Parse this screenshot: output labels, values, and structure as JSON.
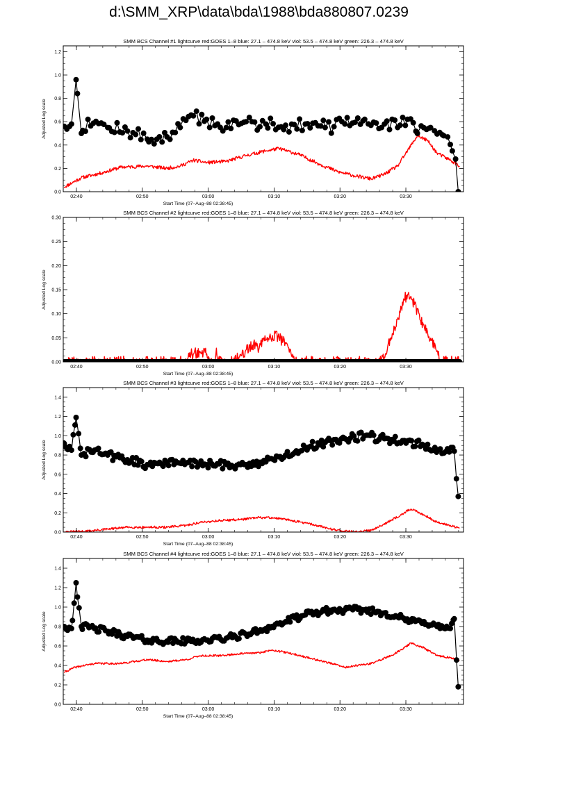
{
  "page": {
    "title": "d:\\SMM_XRP\\data\\bda\\1988\\bda880807.0239"
  },
  "colors": {
    "goes": "#ff0000",
    "bcs": "#000000"
  },
  "chart_data": [
    {
      "type": "line",
      "title": "SMM BCS Channel #1 lightcurve  red:GOES 1–8  blue: 27.1 – 474.8 keV  viol: 53.5 – 474.8 keV  green: 226.3 – 474.8 keV",
      "xlabel": "Start Time (07–Aug–88 02:38:45)",
      "ylabel": "Adjusted Log scale",
      "xlim": [
        -0.75,
        60.0
      ],
      "ylim": [
        0,
        1.25
      ],
      "x_ticks": [
        1.25,
        11.25,
        21.25,
        31.25,
        41.25,
        51.25
      ],
      "x_tick_labels": [
        "02:40",
        "02:50",
        "03:00",
        "03:10",
        "03:20",
        "03:30"
      ],
      "y_ticks": [
        0,
        0.2,
        0.4,
        0.6,
        0.8,
        1.0,
        1.2
      ],
      "y_tick_labels": [
        "0.0",
        "0.2",
        "0.4",
        "0.6",
        "0.8",
        "1.0",
        "1.2"
      ],
      "series": [
        {
          "name": "GOES 1–8",
          "color": "#ff0000",
          "seed": 11,
          "noise": 0.015,
          "keypoints": [
            [
              -0.6,
              0.04
            ],
            [
              2,
              0.12
            ],
            [
              5,
              0.16
            ],
            [
              8,
              0.21
            ],
            [
              12,
              0.22
            ],
            [
              15,
              0.2
            ],
            [
              17,
              0.22
            ],
            [
              19,
              0.27
            ],
            [
              21,
              0.25
            ],
            [
              24,
              0.26
            ],
            [
              27,
              0.31
            ],
            [
              30,
              0.35
            ],
            [
              32,
              0.37
            ],
            [
              35,
              0.32
            ],
            [
              38,
              0.24
            ],
            [
              41,
              0.17
            ],
            [
              44,
              0.13
            ],
            [
              46,
              0.11
            ],
            [
              48,
              0.15
            ],
            [
              50,
              0.22
            ],
            [
              51.5,
              0.35
            ],
            [
              53,
              0.48
            ],
            [
              54.5,
              0.44
            ],
            [
              56,
              0.33
            ],
            [
              58,
              0.27
            ],
            [
              59.4,
              0.22
            ]
          ]
        },
        {
          "name": "BCS Channel #1",
          "color": "#000000",
          "markers": true,
          "seed": 12,
          "noise": 0.06,
          "n": 150,
          "keypoints": [
            [
              -0.6,
              0.56
            ],
            [
              0.5,
              0.58
            ],
            [
              1.2,
              0.96
            ],
            [
              2,
              0.5
            ],
            [
              3,
              0.62
            ],
            [
              6,
              0.55
            ],
            [
              9,
              0.52
            ],
            [
              12,
              0.45
            ],
            [
              15,
              0.47
            ],
            [
              17,
              0.55
            ],
            [
              19,
              0.65
            ],
            [
              21,
              0.62
            ],
            [
              24,
              0.55
            ],
            [
              27,
              0.6
            ],
            [
              30,
              0.58
            ],
            [
              33,
              0.57
            ],
            [
              36,
              0.58
            ],
            [
              39,
              0.55
            ],
            [
              42,
              0.58
            ],
            [
              45,
              0.62
            ],
            [
              48,
              0.58
            ],
            [
              50,
              0.55
            ],
            [
              51.5,
              0.62
            ],
            [
              53,
              0.5
            ],
            [
              55,
              0.55
            ],
            [
              57,
              0.48
            ],
            [
              58.3,
              0.35
            ],
            [
              58.8,
              0.28
            ],
            [
              59.2,
              0.0
            ]
          ]
        }
      ]
    },
    {
      "type": "line",
      "title": "SMM BCS Channel #2 lightcurve  red:GOES 1–8  blue: 27.1 – 474.8 keV  viol: 53.5 – 474.8 keV  green: 226.3 – 474.8 keV",
      "xlabel": "Start Time (07–Aug–88 02:38:45)",
      "ylabel": "Adjusted Log scale",
      "xlim": [
        -0.75,
        60.0
      ],
      "ylim": [
        0,
        0.3
      ],
      "x_ticks": [
        1.25,
        11.25,
        21.25,
        31.25,
        41.25,
        51.25
      ],
      "x_tick_labels": [
        "02:40",
        "02:50",
        "03:00",
        "03:10",
        "03:20",
        "03:30"
      ],
      "y_ticks": [
        0,
        0.05,
        0.1,
        0.15,
        0.2,
        0.25,
        0.3
      ],
      "y_tick_labels": [
        "0.00",
        "0.05",
        "0.10",
        "0.15",
        "0.20",
        "0.25",
        "0.30"
      ],
      "series": [
        {
          "name": "GOES 1–8",
          "color": "#ff0000",
          "seed": 21,
          "noise": 0.012,
          "keypoints": [
            [
              -0.6,
              0
            ],
            [
              18,
              0
            ],
            [
              18.6,
              0.015
            ],
            [
              20,
              0.02
            ],
            [
              21,
              0.018
            ],
            [
              21.5,
              0
            ],
            [
              22.3,
              0
            ],
            [
              22.5,
              0.03
            ],
            [
              22.7,
              0
            ],
            [
              25,
              0
            ],
            [
              26,
              0.01
            ],
            [
              27,
              0.025
            ],
            [
              28,
              0.035
            ],
            [
              29,
              0.03
            ],
            [
              30,
              0.045
            ],
            [
              31,
              0.055
            ],
            [
              32,
              0.05
            ],
            [
              33,
              0.04
            ],
            [
              34,
              0.01
            ],
            [
              35,
              0
            ],
            [
              47,
              0
            ],
            [
              48,
              0.01
            ],
            [
              49,
              0.05
            ],
            [
              50,
              0.09
            ],
            [
              51,
              0.13
            ],
            [
              51.7,
              0.145
            ],
            [
              52.5,
              0.12
            ],
            [
              53.5,
              0.085
            ],
            [
              55,
              0.05
            ],
            [
              56,
              0.02
            ],
            [
              56.5,
              0
            ],
            [
              59.4,
              0
            ]
          ]
        },
        {
          "name": "BCS Channel #2",
          "color": "#000000",
          "markers": true,
          "seed": 22,
          "noise": 0,
          "n": 600,
          "keypoints": [
            [
              -0.6,
              0
            ],
            [
              59.4,
              0
            ]
          ]
        }
      ]
    },
    {
      "type": "line",
      "title": "SMM BCS Channel #3 lightcurve  red:GOES 1–8  blue: 27.1 – 474.8 keV  viol: 53.5 – 474.8 keV  green: 226.3 – 474.8 keV",
      "xlabel": "Start Time (07–Aug–88 02:38:45)",
      "ylabel": "Adjusted Log scale",
      "xlim": [
        -0.75,
        60.0
      ],
      "ylim": [
        0,
        1.5
      ],
      "x_ticks": [
        1.25,
        11.25,
        21.25,
        31.25,
        41.25,
        51.25
      ],
      "x_tick_labels": [
        "02:40",
        "02:50",
        "03:00",
        "03:10",
        "03:20",
        "03:30"
      ],
      "y_ticks": [
        0,
        0.2,
        0.4,
        0.6,
        0.8,
        1.0,
        1.2,
        1.4
      ],
      "y_tick_labels": [
        "0.0",
        "0.2",
        "0.4",
        "0.6",
        "0.8",
        "1.0",
        "1.2",
        "1.4"
      ],
      "series": [
        {
          "name": "GOES 1–8",
          "color": "#ff0000",
          "seed": 31,
          "noise": 0.012,
          "keypoints": [
            [
              -0.6,
              0
            ],
            [
              3,
              0.01
            ],
            [
              6,
              0.03
            ],
            [
              9,
              0.05
            ],
            [
              12,
              0.05
            ],
            [
              15,
              0.05
            ],
            [
              18,
              0.07
            ],
            [
              20,
              0.1
            ],
            [
              23,
              0.12
            ],
            [
              26,
              0.13
            ],
            [
              29,
              0.15
            ],
            [
              31,
              0.15
            ],
            [
              34,
              0.12
            ],
            [
              37,
              0.08
            ],
            [
              40,
              0.03
            ],
            [
              42,
              0.01
            ],
            [
              44,
              0
            ],
            [
              46,
              0.02
            ],
            [
              49,
              0.12
            ],
            [
              51,
              0.2
            ],
            [
              52,
              0.24
            ],
            [
              54,
              0.18
            ],
            [
              56,
              0.1
            ],
            [
              58,
              0.07
            ],
            [
              59.4,
              0.04
            ]
          ]
        },
        {
          "name": "BCS Channel #3",
          "color": "#000000",
          "markers": true,
          "seed": 32,
          "noise": 0.045,
          "n": 220,
          "keypoints": [
            [
              -0.6,
              0.92
            ],
            [
              0.5,
              0.85
            ],
            [
              1.2,
              1.19
            ],
            [
              2,
              0.8
            ],
            [
              4,
              0.85
            ],
            [
              6,
              0.8
            ],
            [
              9,
              0.75
            ],
            [
              12,
              0.7
            ],
            [
              15,
              0.72
            ],
            [
              18,
              0.72
            ],
            [
              21,
              0.7
            ],
            [
              24,
              0.7
            ],
            [
              27,
              0.7
            ],
            [
              30,
              0.73
            ],
            [
              33,
              0.8
            ],
            [
              36,
              0.88
            ],
            [
              39,
              0.93
            ],
            [
              42,
              0.97
            ],
            [
              45,
              1.0
            ],
            [
              48,
              0.97
            ],
            [
              51,
              0.95
            ],
            [
              54,
              0.9
            ],
            [
              57,
              0.82
            ],
            [
              58.6,
              0.84
            ],
            [
              59.2,
              0.37
            ]
          ]
        }
      ]
    },
    {
      "type": "line",
      "title": "SMM BCS Channel #4 lightcurve  red:GOES 1–8  blue: 27.1 – 474.8 keV  viol: 53.5 – 474.8 keV  green: 226.3 – 474.8 keV",
      "xlabel": "Start Time (07–Aug–88 02:38:45)",
      "ylabel": "Adjusted Log scale",
      "xlim": [
        -0.75,
        60.0
      ],
      "ylim": [
        0,
        1.5
      ],
      "x_ticks": [
        1.25,
        11.25,
        21.25,
        31.25,
        41.25,
        51.25
      ],
      "x_tick_labels": [
        "02:40",
        "02:50",
        "03:00",
        "03:10",
        "03:20",
        "03:30"
      ],
      "y_ticks": [
        0,
        0.2,
        0.4,
        0.6,
        0.8,
        1.0,
        1.2,
        1.4
      ],
      "y_tick_labels": [
        "0.0",
        "0.2",
        "0.4",
        "0.6",
        "0.8",
        "1.0",
        "1.2",
        "1.4"
      ],
      "series": [
        {
          "name": "GOES 1–8",
          "color": "#ff0000",
          "seed": 41,
          "noise": 0.01,
          "keypoints": [
            [
              -0.6,
              0.33
            ],
            [
              1,
              0.38
            ],
            [
              4,
              0.42
            ],
            [
              8,
              0.42
            ],
            [
              12,
              0.46
            ],
            [
              15,
              0.44
            ],
            [
              18,
              0.46
            ],
            [
              20,
              0.5
            ],
            [
              23,
              0.5
            ],
            [
              26,
              0.52
            ],
            [
              29,
              0.53
            ],
            [
              31,
              0.56
            ],
            [
              34,
              0.52
            ],
            [
              37,
              0.47
            ],
            [
              40,
              0.42
            ],
            [
              42,
              0.38
            ],
            [
              44,
              0.4
            ],
            [
              46,
              0.42
            ],
            [
              49,
              0.5
            ],
            [
              51,
              0.58
            ],
            [
              52,
              0.63
            ],
            [
              54,
              0.58
            ],
            [
              56,
              0.5
            ],
            [
              58,
              0.48
            ],
            [
              59.4,
              0.45
            ]
          ]
        },
        {
          "name": "BCS Channel #4",
          "color": "#000000",
          "markers": true,
          "seed": 42,
          "noise": 0.035,
          "n": 240,
          "keypoints": [
            [
              -0.6,
              0.8
            ],
            [
              0.5,
              0.78
            ],
            [
              1.2,
              1.25
            ],
            [
              2,
              0.8
            ],
            [
              4,
              0.78
            ],
            [
              6,
              0.75
            ],
            [
              9,
              0.7
            ],
            [
              12,
              0.66
            ],
            [
              15,
              0.65
            ],
            [
              18,
              0.65
            ],
            [
              21,
              0.66
            ],
            [
              24,
              0.68
            ],
            [
              27,
              0.72
            ],
            [
              30,
              0.78
            ],
            [
              33,
              0.85
            ],
            [
              36,
              0.92
            ],
            [
              39,
              0.96
            ],
            [
              42,
              0.97
            ],
            [
              45,
              0.97
            ],
            [
              48,
              0.94
            ],
            [
              50,
              0.9
            ],
            [
              52,
              0.85
            ],
            [
              54,
              0.85
            ],
            [
              56,
              0.8
            ],
            [
              58,
              0.78
            ],
            [
              58.6,
              0.88
            ],
            [
              59.2,
              0.18
            ]
          ]
        }
      ]
    }
  ]
}
